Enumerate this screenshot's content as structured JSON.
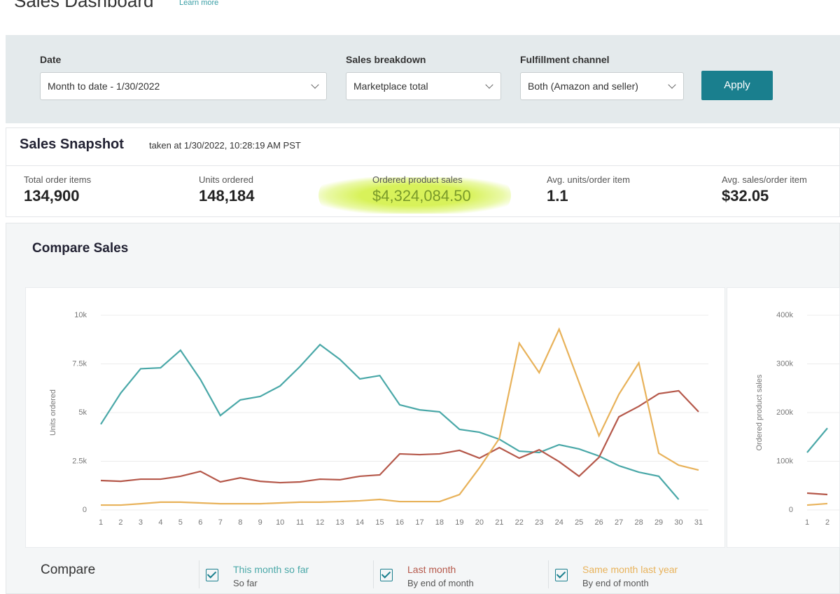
{
  "header": {
    "title": "Sales Dashboard",
    "link": "Learn more"
  },
  "filters": {
    "date": {
      "label": "Date",
      "value": "Month to date - 1/30/2022"
    },
    "breakdown": {
      "label": "Sales breakdown",
      "value": "Marketplace total"
    },
    "channel": {
      "label": "Fulfillment channel",
      "value": "Both (Amazon and seller)"
    },
    "apply": "Apply"
  },
  "snapshot": {
    "title": "Sales Snapshot",
    "taken": "taken at 1/30/2022, 10:28:19 AM PST",
    "metrics": [
      {
        "label": "Total order items",
        "value": "134,900"
      },
      {
        "label": "Units ordered",
        "value": "148,184"
      },
      {
        "label": "Ordered product sales",
        "value": "$4,324,084.50"
      },
      {
        "label": "Avg. units/order item",
        "value": "1.1"
      },
      {
        "label": "Avg. sales/order item",
        "value": "$32.05"
      }
    ]
  },
  "compare": {
    "title": "Compare Sales",
    "charts": [
      {
        "type": "line",
        "ylabel": "Units ordered",
        "x": [
          1,
          2,
          3,
          4,
          5,
          6,
          7,
          8,
          9,
          10,
          11,
          12,
          13,
          14,
          15,
          16,
          17,
          18,
          19,
          20,
          21,
          22,
          23,
          24,
          25,
          26,
          27,
          28,
          29,
          30,
          31
        ],
        "ylim": [
          0,
          10000
        ],
        "yticks": [
          0,
          {
            "value": 2500,
            "label": "2.5k"
          },
          {
            "value": 5000,
            "label": "5k"
          },
          {
            "value": 7500,
            "label": "7.5k"
          },
          {
            "value": 10000,
            "label": "10k"
          }
        ],
        "grid": true,
        "series": [
          {
            "name": "This month so far",
            "color": "#4aa8a8",
            "values": [
              4400,
              6000,
              7250,
              7300,
              8200,
              6700,
              4850,
              5650,
              5830,
              6370,
              7370,
              8490,
              7730,
              6730,
              6900,
              5400,
              5140,
              5040,
              4140,
              3990,
              3630,
              3020,
              2950,
              3350,
              3130,
              2770,
              2270,
              1940,
              1730,
              540,
              null
            ]
          },
          {
            "name": "Last month",
            "color": "#b5584a",
            "values": [
              1510,
              1470,
              1580,
              1580,
              1730,
              1980,
              1440,
              1650,
              1470,
              1400,
              1440,
              1580,
              1550,
              1730,
              1800,
              2880,
              2840,
              2880,
              3060,
              2660,
              3200,
              2660,
              3090,
              2480,
              1730,
              2700,
              4780,
              5320,
              5970,
              6120,
              5040
            ]
          },
          {
            "name": "Same month last year",
            "color": "#e8b25a",
            "values": [
              250,
              250,
              320,
              400,
              400,
              360,
              320,
              320,
              320,
              360,
              400,
              400,
              430,
              470,
              540,
              430,
              430,
              430,
              790,
              2160,
              3670,
              8560,
              7050,
              9280,
              6550,
              3810,
              5940,
              7550,
              2910,
              2300,
              2050
            ]
          }
        ]
      },
      {
        "type": "line",
        "ylabel": "Ordered product sales",
        "x": [
          1,
          2
        ],
        "ylim": [
          0,
          400000
        ],
        "yticks": [
          0,
          {
            "value": 100000,
            "label": "100k"
          },
          {
            "value": 200000,
            "label": "200k"
          },
          {
            "value": 300000,
            "label": "300k"
          },
          {
            "value": 400000,
            "label": "400k"
          }
        ],
        "grid": true,
        "series": [
          {
            "name": "This month so far",
            "color": "#4aa8a8",
            "values": [
              118000,
              168000
            ]
          },
          {
            "name": "Last month",
            "color": "#b5584a",
            "values": [
              34500,
              31700
            ]
          },
          {
            "name": "Same month last year",
            "color": "#e8b25a",
            "values": [
              10000,
              13000
            ]
          }
        ]
      }
    ],
    "legend": {
      "label": "Compare",
      "items": [
        {
          "name": "This month so far",
          "sub": "So far"
        },
        {
          "name": "Last month",
          "sub": "By end of month"
        },
        {
          "name": "Same month last year",
          "sub": "By end of month"
        }
      ]
    }
  }
}
